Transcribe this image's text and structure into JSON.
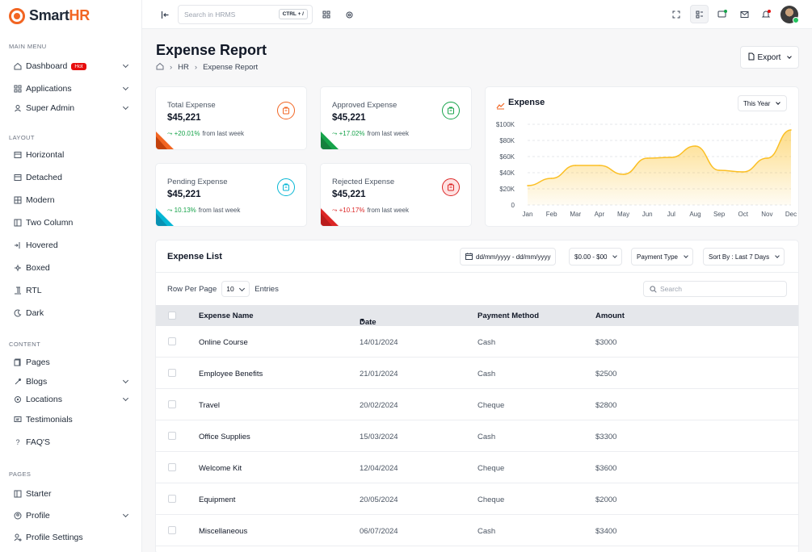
{
  "app": {
    "brand_prefix": "Smart",
    "brand_suffix": "HR"
  },
  "sidebar": {
    "sections": {
      "main": "Main Menu",
      "layout": "Layout",
      "content": "Content",
      "pages": "Pages"
    },
    "main_items": [
      {
        "label": "Dashboard",
        "badge": "Hot"
      },
      {
        "label": "Applications"
      },
      {
        "label": "Super Admin"
      }
    ],
    "layout_items": [
      "Horizontal",
      "Detached",
      "Modern",
      "Two Column",
      "Hovered",
      "Boxed",
      "RTL",
      "Dark"
    ],
    "content_items": [
      "Pages",
      "Blogs",
      "Locations",
      "Testimonials",
      "FAQ'S"
    ],
    "pages_items": [
      "Starter",
      "Profile",
      "Profile Settings"
    ]
  },
  "header": {
    "search_placeholder": "Search in HRMS",
    "shortcut": "CTRL + /"
  },
  "page": {
    "title": "Expense Report",
    "breadcrumb": [
      "HR",
      "Expense Report"
    ],
    "export_label": "Export"
  },
  "stats": [
    {
      "title": "Total Expense",
      "value": "$45,221",
      "change": "+20.01%",
      "suffix": "from last week",
      "color": "#f26522"
    },
    {
      "title": "Approved Expense",
      "value": "$45,221",
      "change": "+17.02%",
      "suffix": "from last week",
      "color": "#16a34a"
    },
    {
      "title": "Pending Expense",
      "value": "$45,221",
      "change": "10.13%",
      "suffix": "from last week",
      "color": "#06b6d4"
    },
    {
      "title": "Rejected Expense",
      "value": "$45,221",
      "change": "+10.17%",
      "suffix": "from last week",
      "color": "#dc2626"
    }
  ],
  "chart_card": {
    "title": "Expense",
    "period": "This Year"
  },
  "chart_data": {
    "type": "area",
    "categories": [
      "Jan",
      "Feb",
      "Mar",
      "Apr",
      "May",
      "Jun",
      "Jul",
      "Aug",
      "Sep",
      "Oct",
      "Nov",
      "Dec"
    ],
    "values": [
      24000,
      33000,
      49000,
      49000,
      38000,
      58000,
      59000,
      73000,
      43000,
      41000,
      58000,
      93000
    ],
    "yticks": [
      "0",
      "$20K",
      "$40K",
      "$60K",
      "$80K",
      "$100K"
    ],
    "ylim": [
      0,
      100000
    ],
    "color": "#fbbf24"
  },
  "list": {
    "title": "Expense List",
    "filters": {
      "date": "dd/mm/yyyy - dd/mm/yyyy",
      "amount": "$0.00 - $00",
      "payment": "Payment Type",
      "sort": "Sort By : Last 7 Days"
    },
    "rows_per_page_label": "Row Per Page",
    "rows_per_page": "10",
    "entries_label": "Entries",
    "search_placeholder": "Search",
    "columns": [
      "Expense Name",
      "Date",
      "Payment Method",
      "Amount"
    ],
    "rows": [
      {
        "name": "Online Course",
        "date": "14/01/2024",
        "method": "Cash",
        "amount": "$3000"
      },
      {
        "name": "Employee Benefits",
        "date": "21/01/2024",
        "method": "Cash",
        "amount": "$2500"
      },
      {
        "name": "Travel",
        "date": "20/02/2024",
        "method": "Cheque",
        "amount": "$2800"
      },
      {
        "name": "Office Supplies",
        "date": "15/03/2024",
        "method": "Cash",
        "amount": "$3300"
      },
      {
        "name": "Welcome Kit",
        "date": "12/04/2024",
        "method": "Cheque",
        "amount": "$3600"
      },
      {
        "name": "Equipment",
        "date": "20/05/2024",
        "method": "Cheque",
        "amount": "$2000"
      },
      {
        "name": "Miscellaneous",
        "date": "06/07/2024",
        "method": "Cash",
        "amount": "$3400"
      }
    ]
  }
}
